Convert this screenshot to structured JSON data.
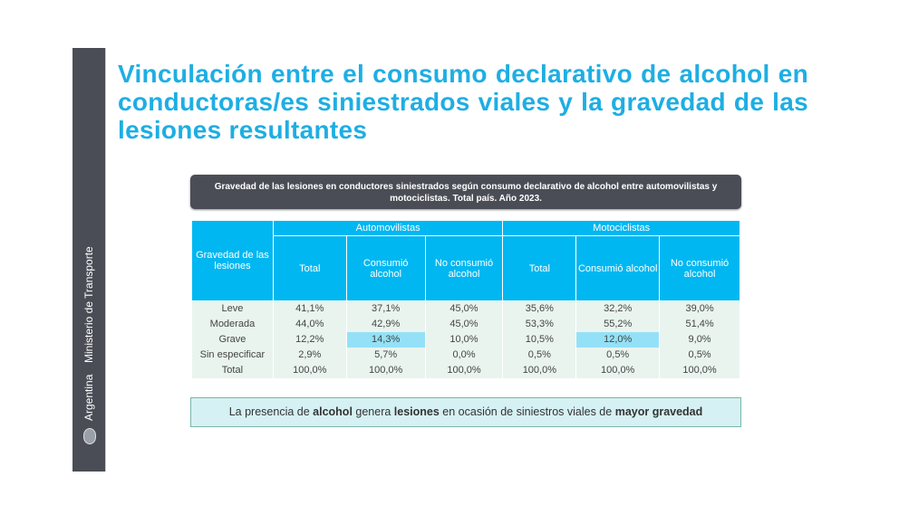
{
  "sidebar": {
    "org": "Ministerio de Transporte",
    "country": "Argentina"
  },
  "title": "Vinculación entre el consumo declarativo de alcohol en conductoras/es siniestrados viales y la gravedad de las lesiones resultantes",
  "caption": "Gravedad de las lesiones en conductores siniestrados según consumo declarativo de alcohol entre automovilistas y motociclistas. Total país. Año 2023.",
  "table": {
    "row_header": "Gravedad de las lesiones",
    "groups": [
      "Automovilistas",
      "Motociclistas"
    ],
    "subcols": [
      "Total",
      "Consumió alcohol",
      "No consumió alcohol",
      "Total",
      "Consumió alcohol",
      "No consumió alcohol"
    ],
    "rows": [
      {
        "label": "Leve",
        "values": [
          "41,1%",
          "37,1%",
          "45,0%",
          "35,6%",
          "32,2%",
          "39,0%"
        ]
      },
      {
        "label": "Moderada",
        "values": [
          "44,0%",
          "42,9%",
          "45,0%",
          "53,3%",
          "55,2%",
          "51,4%"
        ]
      },
      {
        "label": "Grave",
        "values": [
          "12,2%",
          "14,3%",
          "10,0%",
          "10,5%",
          "12,0%",
          "9,0%"
        ]
      },
      {
        "label": "Sin especificar",
        "values": [
          "2,9%",
          "5,7%",
          "0,0%",
          "0,5%",
          "0,5%",
          "0,5%"
        ]
      },
      {
        "label": "Total",
        "values": [
          "100,0%",
          "100,0%",
          "100,0%",
          "100,0%",
          "100,0%",
          "100,0%"
        ]
      }
    ],
    "highlight_color": "#94e1f7"
  },
  "note": {
    "p1": "La presencia de ",
    "b1": "alcohol",
    "p2": " genera ",
    "b2": "lesiones",
    "p3": " en ocasión de siniestros viales de ",
    "b3": "mayor gravedad"
  }
}
